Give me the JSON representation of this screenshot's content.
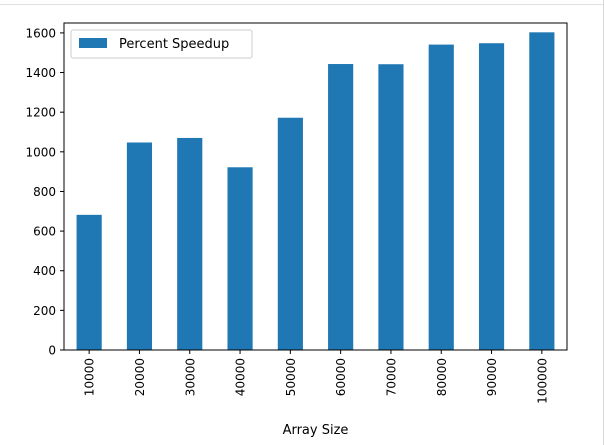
{
  "chart_data": {
    "type": "bar",
    "categories": [
      "10000",
      "20000",
      "30000",
      "40000",
      "50000",
      "60000",
      "70000",
      "80000",
      "90000",
      "100000"
    ],
    "series": [
      {
        "name": "Percent Speedup",
        "values": [
          682,
          1047,
          1070,
          922,
          1172,
          1443,
          1442,
          1541,
          1548,
          1603
        ],
        "color": "#1f77b4"
      }
    ],
    "xlabel": "Array Size",
    "ylabel": "",
    "ylim": [
      0,
      1650
    ],
    "yticks": [
      0,
      200,
      400,
      600,
      800,
      1000,
      1200,
      1400,
      1600
    ],
    "grid": false,
    "legend_position": "top-left"
  }
}
